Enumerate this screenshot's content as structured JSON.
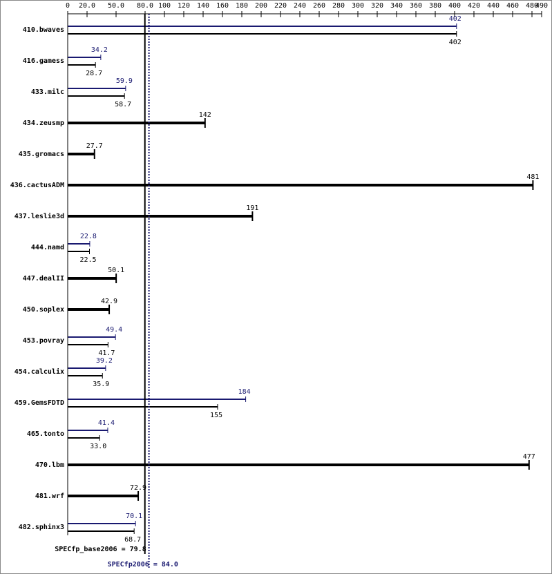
{
  "chart_data": {
    "type": "spec-bar",
    "categories": [
      "410.bwaves",
      "416.gamess",
      "433.milc",
      "434.zeusmp",
      "435.gromacs",
      "436.cactusADM",
      "437.leslie3d",
      "444.namd",
      "447.dealII",
      "450.soplex",
      "453.povray",
      "454.calculix",
      "459.GemsFDTD",
      "465.tonto",
      "470.lbm",
      "481.wrf",
      "482.sphinx3"
    ],
    "series": [
      {
        "name": "SPECfp_base2006",
        "color": "#000000",
        "values": [
          402,
          28.7,
          58.7,
          142,
          27.7,
          481,
          191,
          22.5,
          50.1,
          42.9,
          41.7,
          35.9,
          155,
          33.0,
          477,
          72.9,
          68.7
        ],
        "value_labels": [
          "402",
          "28.7",
          "58.7",
          "142",
          "27.7",
          "481",
          "191",
          "22.5",
          "50.1",
          "42.9",
          "41.7",
          "35.9",
          "155",
          "33.0",
          "477",
          "72.9",
          "68.7"
        ]
      },
      {
        "name": "SPECfp2006",
        "color": "#191970",
        "values": [
          402,
          34.2,
          59.9,
          null,
          null,
          null,
          null,
          22.8,
          null,
          null,
          49.4,
          39.2,
          184,
          41.4,
          null,
          null,
          70.1
        ]
      }
    ],
    "xlim": [
      0,
      490
    ],
    "xticks": [
      0,
      {
        "value": 20,
        "label": "20.0"
      },
      {
        "value": 50,
        "label": "50.0"
      },
      {
        "value": 80,
        "label": "80.0"
      },
      100,
      120,
      140,
      160,
      180,
      200,
      220,
      240,
      260,
      280,
      300,
      320,
      340,
      360,
      380,
      400,
      420,
      440,
      460,
      480,
      490
    ],
    "summary": {
      "base_label": "SPECfp_base2006 = 79.8",
      "base_value": 79.8,
      "peak_label": "SPECfp2006 = 84.0",
      "peak_value": 84.0
    },
    "grid": false
  }
}
